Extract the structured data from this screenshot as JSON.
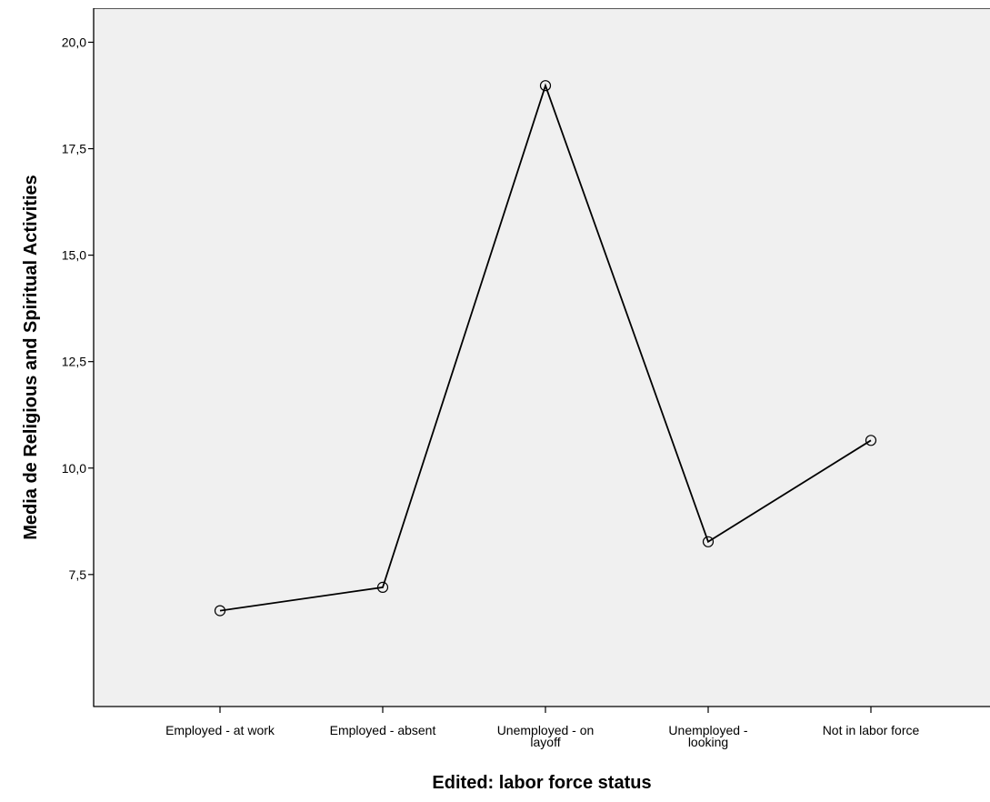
{
  "chart_data": {
    "type": "line",
    "xlabel": "Edited: labor force status",
    "ylabel": "Media de Religious and Spiritual Activities",
    "categories": [
      [
        "Employed - at work"
      ],
      [
        "Employed - absent"
      ],
      [
        "Unemployed - on",
        "layoff"
      ],
      [
        "Unemployed -",
        "looking"
      ],
      [
        "Not in labor force"
      ]
    ],
    "series": [
      {
        "values": [
          6.65,
          7.2,
          18.98,
          8.27,
          10.65
        ]
      }
    ],
    "yticks": [
      7.5,
      10.0,
      12.5,
      15.0,
      17.5,
      20.0
    ],
    "ytick_labels": [
      "7,5",
      "10,0",
      "12,5",
      "15,0",
      "17,5",
      "20,0"
    ],
    "ylim": [
      4.4,
      20.8
    ],
    "grid": false,
    "marker": "open-circle",
    "colors": {
      "plot_background": "#f0f0f0",
      "line": "#000000",
      "frame": "#555555"
    }
  }
}
